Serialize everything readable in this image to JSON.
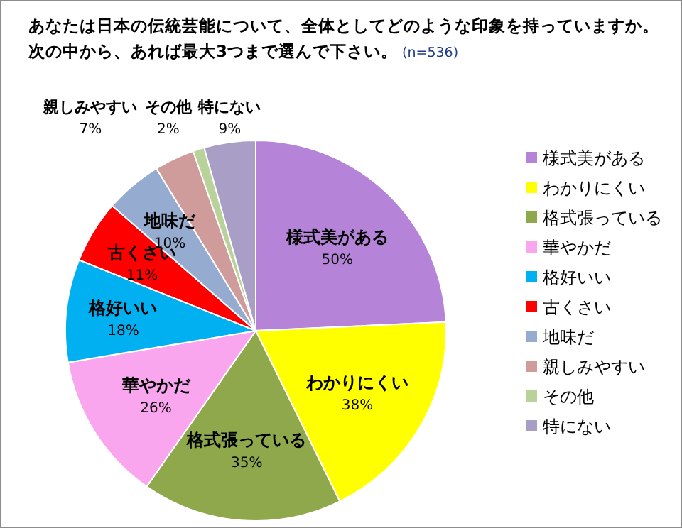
{
  "chart_data": {
    "type": "pie",
    "title": "あなたは日本の伝統芸能について、全体としてどのような印象を持っていますか。",
    "subtitle": "次の中から、あれば最大3つまで選んで下さい。",
    "annotations": [
      "(n=536)"
    ],
    "categories": [
      "様式美がある",
      "わかりにくい",
      "格式張っている",
      "華やかだ",
      "格好いい",
      "古くさい",
      "地味だ",
      "親しみやすい",
      "その他",
      "特にない"
    ],
    "values": [
      50,
      38,
      35,
      26,
      18,
      11,
      10,
      7,
      2,
      9
    ],
    "value_labels": [
      "50%",
      "38%",
      "35%",
      "26%",
      "18%",
      "11%",
      "10%",
      "7%",
      "2%",
      "9%"
    ],
    "colors": [
      "#b584d8",
      "#ffff00",
      "#8fa84c",
      "#f9a6ef",
      "#00b0f0",
      "#ff0000",
      "#95abd0",
      "#d09b9b",
      "#b9d29a",
      "#a99fc6"
    ],
    "legend": "right"
  }
}
